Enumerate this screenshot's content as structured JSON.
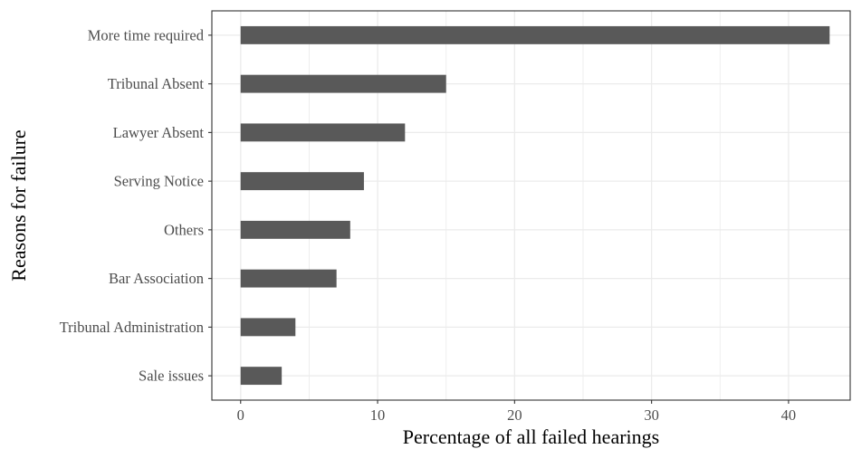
{
  "chart_data": {
    "type": "bar",
    "orientation": "horizontal",
    "categories": [
      "More time required",
      "Tribunal Absent",
      "Lawyer Absent",
      "Serving Notice",
      "Others",
      "Bar Association",
      "Tribunal Administration",
      "Sale issues"
    ],
    "values": [
      43,
      15,
      12,
      9,
      8,
      7,
      4,
      3
    ],
    "xlabel": "Percentage of all failed hearings",
    "ylabel": "Reasons for failure",
    "xlim": [
      -2.1,
      44.5
    ],
    "xticks": [
      0,
      10,
      20,
      30,
      40
    ],
    "xtick_labels": [
      "0",
      "10",
      "20",
      "30",
      "40"
    ],
    "grid": true,
    "bar_color": "#595959",
    "grid_color": "#ebebeb",
    "legend": "none"
  }
}
